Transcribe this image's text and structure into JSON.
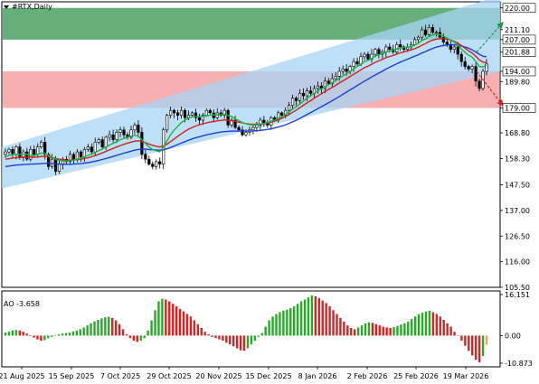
{
  "symbol_label": "#RTX,Daily",
  "ao_label": "AO -3.658",
  "colors": {
    "background": "#ffffff",
    "bull_candle": "#ffffff",
    "bear_candle": "#000000",
    "channel": "#a8d4f5",
    "green_zone": "#3f9b5a",
    "red_zone": "#f27b7b",
    "ma_fast": "#1db33c",
    "ma_mid": "#d02020",
    "ma_slow": "#1d3fd6",
    "ao_up": "#2aa82a",
    "ao_down": "#dd2020",
    "ao_last": "#f5a060",
    "arrow_up": "#1f9a3a",
    "arrow_down": "#e02020"
  },
  "chart_data": [
    {
      "type": "candlestick",
      "title": "#RTX,Daily",
      "ylim": [
        105.5,
        222.5
      ],
      "y_ticks": [
        "220.00",
        "211.10",
        "207.00",
        "201.88",
        "194.00",
        "189.80",
        "179.00",
        "168.80",
        "158.30",
        "147.50",
        "137.00",
        "126.50",
        "116.00",
        "105.50"
      ],
      "x_ticks": [
        "21 Aug 2025",
        "15 Sep 2025",
        "7 Oct 2025",
        "29 Oct 2025",
        "20 Nov 2025",
        "15 Dec 2025",
        "8 Jan 2026",
        "2 Feb 2026",
        "25 Feb 2026",
        "19 Mar 2026"
      ],
      "zones": [
        {
          "name": "resistance",
          "from": 207.0,
          "to": 220.0
        },
        {
          "name": "support",
          "from": 179.0,
          "to": 194.0
        }
      ],
      "levels": [
        220.0,
        207.0,
        201.88,
        194.0,
        179.0
      ],
      "channel": {
        "lower_start": 146.0,
        "lower_end": 194.0,
        "upper_start": 163.0,
        "upper_end": 225.0
      },
      "forecast": [
        {
          "direction": "up",
          "from": 201.88,
          "to": 214.0
        },
        {
          "direction": "down",
          "from": 194.0,
          "to": 180.0
        }
      ],
      "closes": [
        161,
        162,
        160,
        163,
        159,
        161,
        158,
        162,
        160,
        163,
        165,
        160,
        155,
        158,
        153,
        156,
        158,
        157,
        160,
        158,
        161,
        159,
        162,
        163,
        161,
        165,
        166,
        163,
        167,
        168,
        166,
        169,
        170,
        168,
        167,
        170,
        172,
        169,
        160,
        158,
        156,
        155,
        157,
        156,
        170,
        176,
        178,
        177,
        176,
        178,
        175,
        176,
        177,
        175,
        174,
        176,
        178,
        177,
        175,
        177,
        176,
        178,
        172,
        174,
        171,
        170,
        168,
        169,
        170,
        171,
        172,
        174,
        173,
        172,
        175,
        174,
        177,
        176,
        178,
        180,
        183,
        182,
        185,
        184,
        186,
        185,
        187,
        188,
        187,
        190,
        189,
        191,
        192,
        194,
        195,
        194,
        196,
        198,
        197,
        200,
        201,
        199,
        201,
        203,
        201,
        202,
        204,
        203,
        202,
        205,
        204,
        203,
        204,
        205,
        207,
        208,
        211,
        209,
        212,
        210,
        210,
        208,
        206,
        205,
        203,
        204,
        201,
        198,
        196,
        195,
        196,
        190,
        187,
        194,
        197
      ],
      "ma_fast": [
        159,
        159.5,
        160,
        160,
        160,
        160,
        160,
        159.5,
        159.5,
        160,
        160.5,
        160.5,
        159.5,
        158.8,
        158,
        157.5,
        157.3,
        157.2,
        157.4,
        157.6,
        158,
        158.4,
        159,
        159.6,
        160,
        160.8,
        161.5,
        162.2,
        163,
        163.8,
        164.5,
        165.2,
        166,
        166.5,
        167,
        167.4,
        167.8,
        167.5,
        166,
        164.5,
        163,
        162,
        161.5,
        161,
        163,
        165.5,
        168,
        170,
        171.5,
        173,
        174,
        174.8,
        175.3,
        175.5,
        175.6,
        175.6,
        175.8,
        176,
        176.1,
        176.2,
        176.3,
        176.4,
        176,
        175.5,
        174.5,
        173.8,
        173,
        172.5,
        172.2,
        172,
        172.1,
        172.4,
        172.7,
        173,
        173.5,
        174,
        174.8,
        175.5,
        176.3,
        177.3,
        178.5,
        179.5,
        180.7,
        181.8,
        183,
        184,
        185,
        186,
        186.8,
        187.7,
        188.5,
        189.3,
        190.2,
        191.2,
        192.2,
        193,
        194,
        195,
        196,
        197,
        198,
        198.5,
        199.3,
        200.3,
        200.8,
        201.3,
        202,
        202.4,
        202.6,
        203.2,
        203.6,
        203.7,
        203.9,
        204.2,
        204.8,
        205.5,
        206.6,
        207.3,
        208.3,
        208.9,
        209.2,
        209,
        208.4,
        207.7,
        206.7,
        206,
        204.8,
        203.2,
        201.8,
        200.6,
        199.8,
        198,
        196,
        195.8,
        196.5
      ],
      "ma_mid": [
        158,
        158.2,
        158.5,
        158.6,
        158.7,
        158.8,
        158.8,
        158.8,
        158.8,
        158.9,
        159.1,
        159.2,
        159,
        158.7,
        158.3,
        158,
        157.8,
        157.6,
        157.6,
        157.7,
        157.8,
        158,
        158.3,
        158.6,
        159,
        159.5,
        160,
        160.6,
        161.2,
        161.8,
        162.4,
        163,
        163.6,
        164.1,
        164.6,
        165,
        165.4,
        165.5,
        165.2,
        164.8,
        164.2,
        163.7,
        163.3,
        163,
        163.4,
        164.2,
        165.2,
        166.3,
        167.4,
        168.4,
        169.4,
        170.3,
        171,
        171.6,
        172.1,
        172.5,
        172.9,
        173.2,
        173.5,
        173.7,
        173.9,
        174.1,
        174,
        173.8,
        173.5,
        173.2,
        172.9,
        172.6,
        172.4,
        172.3,
        172.3,
        172.4,
        172.6,
        172.8,
        173.2,
        173.6,
        174.2,
        174.8,
        175.5,
        176.3,
        177.2,
        178.1,
        179.1,
        180.1,
        181.1,
        182,
        183,
        183.9,
        184.8,
        185.7,
        186.6,
        187.4,
        188.3,
        189.2,
        190.1,
        191,
        191.9,
        192.8,
        193.7,
        194.6,
        195.5,
        196.1,
        196.9,
        197.7,
        198.3,
        198.9,
        199.6,
        200.1,
        200.5,
        201.1,
        201.6,
        202,
        202.4,
        202.8,
        203.3,
        203.9,
        204.7,
        205.4,
        206.2,
        206.8,
        207.2,
        207.4,
        207.4,
        207.2,
        206.8,
        206.3,
        205.6,
        204.6,
        203.5,
        202.4,
        201.5,
        200.2,
        198.7,
        197.8,
        197.6
      ],
      "ma_slow": [
        155,
        155.2,
        155.4,
        155.6,
        155.7,
        155.8,
        155.9,
        156,
        156,
        156.1,
        156.2,
        156.3,
        156.3,
        156.2,
        156.1,
        156,
        155.9,
        155.9,
        155.9,
        156,
        156.1,
        156.2,
        156.4,
        156.6,
        156.9,
        157.2,
        157.5,
        157.9,
        158.3,
        158.7,
        159.1,
        159.6,
        160,
        160.5,
        160.9,
        161.3,
        161.7,
        162,
        162.1,
        162.1,
        162,
        161.9,
        161.8,
        161.7,
        161.9,
        162.3,
        162.8,
        163.4,
        164,
        164.6,
        165.2,
        165.8,
        166.3,
        166.8,
        167.2,
        167.6,
        168,
        168.3,
        168.6,
        168.9,
        169.1,
        169.3,
        169.4,
        169.5,
        169.5,
        169.5,
        169.5,
        169.5,
        169.5,
        169.6,
        169.7,
        169.8,
        170,
        170.2,
        170.5,
        170.8,
        171.2,
        171.6,
        172.1,
        172.7,
        173.3,
        174,
        174.7,
        175.5,
        176.3,
        177.1,
        177.9,
        178.7,
        179.5,
        180.3,
        181.1,
        182,
        182.8,
        183.7,
        184.6,
        185.5,
        186.4,
        187.3,
        188.2,
        189.1,
        190,
        190.8,
        191.7,
        192.5,
        193.3,
        194.1,
        194.9,
        195.7,
        196.4,
        197.1,
        197.8,
        198.4,
        199,
        199.6,
        200.2,
        200.8,
        201.5,
        202.1,
        202.8,
        203.4,
        203.9,
        204.3,
        204.6,
        204.8,
        204.9,
        204.9,
        204.7,
        204.4,
        204,
        203.5,
        202.8,
        201.9,
        201,
        200.2,
        200
      ],
      "legend": "none",
      "grid": false
    },
    {
      "type": "bar",
      "title": "AO -3.658",
      "ylim": [
        -10.873,
        16.151
      ],
      "y_ticks": [
        "16.151",
        "0.00",
        "-10.873"
      ],
      "values": [
        1.2,
        1.5,
        2.0,
        2.2,
        2.0,
        1.5,
        0.8,
        -0.2,
        -0.8,
        -1.5,
        -2.0,
        -1.8,
        -1.0,
        -0.5,
        0.2,
        0.5,
        0.8,
        1.0,
        1.2,
        1.6,
        2.0,
        2.5,
        3.2,
        4.0,
        4.8,
        5.6,
        6.2,
        6.8,
        7.2,
        7.4,
        7.0,
        6.0,
        4.5,
        2.5,
        0.5,
        -1.0,
        -2.0,
        -2.5,
        -2.0,
        -1.0,
        2.0,
        6.0,
        10.0,
        13.5,
        14.5,
        14.2,
        13.5,
        12.5,
        11.5,
        10.5,
        9.5,
        8.5,
        7.5,
        6.0,
        4.5,
        3.0,
        1.5,
        0.5,
        -0.5,
        -1.0,
        -1.5,
        -2.0,
        -2.8,
        -3.5,
        -4.2,
        -5.0,
        -5.8,
        -6.0,
        -5.0,
        -3.5,
        -2.0,
        -0.5,
        1.0,
        3.5,
        6.0,
        7.5,
        8.5,
        9.2,
        9.8,
        10.2,
        10.8,
        11.5,
        12.5,
        13.5,
        14.2,
        15.0,
        15.8,
        15.5,
        14.8,
        13.8,
        12.8,
        11.5,
        10.0,
        8.5,
        7.0,
        5.5,
        4.0,
        3.0,
        2.5,
        3.2,
        4.0,
        4.8,
        5.2,
        5.0,
        4.5,
        4.0,
        3.5,
        3.2,
        3.0,
        3.3,
        3.8,
        4.3,
        4.8,
        5.5,
        6.5,
        7.5,
        8.5,
        9.0,
        9.5,
        9.8,
        9.2,
        8.5,
        7.5,
        6.2,
        4.8,
        3.5,
        1.5,
        0.2,
        -2.0,
        -4.0,
        -6.0,
        -7.8,
        -9.5,
        -10.5,
        -8.0,
        -3.658
      ],
      "legend": "none",
      "grid": false
    }
  ]
}
